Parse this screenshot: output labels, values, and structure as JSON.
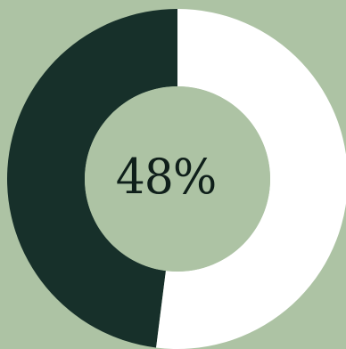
{
  "chart_data": {
    "type": "pie",
    "variant": "donut",
    "categories": [
      "",
      ""
    ],
    "values": [
      48,
      52
    ],
    "center_label": "48%",
    "colors": {
      "background": "#adc3a4",
      "filled": "#17302a",
      "remaining": "#ffffff",
      "hole": "#adc3a4",
      "label": "#0f1f1a"
    },
    "start_angle_deg": 0,
    "direction": "clockwise"
  }
}
